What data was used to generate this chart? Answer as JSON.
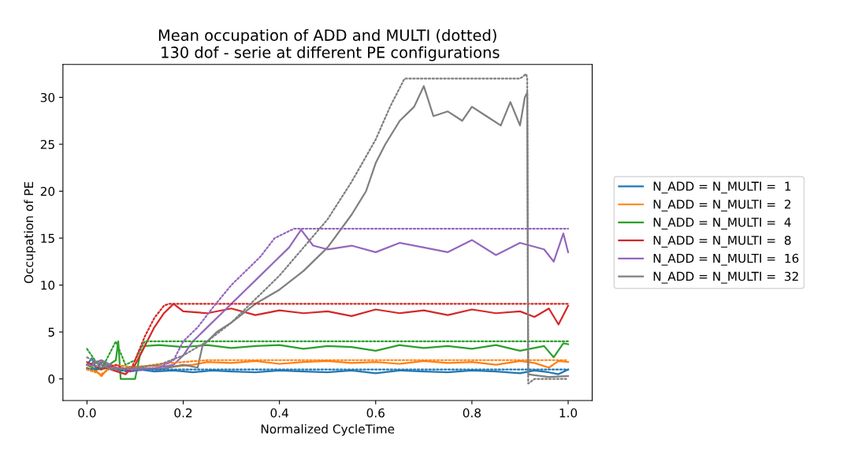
{
  "chart_data": {
    "type": "line",
    "title": "Mean occupation of ADD and MULTI (dotted)\n 130 dof - serie at different PE configurations",
    "xlabel": "Normalized CycleTime",
    "ylabel": "Occupation of PE",
    "xlim": [
      -0.05,
      1.05
    ],
    "ylim": [
      -2.3,
      33.5
    ],
    "xticks": [
      {
        "value": 0,
        "label": "0.0"
      },
      0.2,
      0.4,
      0.6,
      0.8,
      {
        "value": 1,
        "label": "1.0"
      }
    ],
    "yticks": [
      0,
      5,
      10,
      15,
      20,
      25,
      30
    ],
    "grid": false,
    "legend": "right",
    "marker": "none",
    "series": [
      {
        "name": "N_ADD = N_MULTI =  1",
        "color": "#1f77b4",
        "line_style": "solid",
        "x": [
          0,
          0.01,
          0.02,
          0.03,
          0.05,
          0.07,
          0.09,
          0.11,
          0.14,
          0.18,
          0.22,
          0.26,
          0.3,
          0.35,
          0.4,
          0.45,
          0.5,
          0.55,
          0.6,
          0.65,
          0.7,
          0.75,
          0.8,
          0.85,
          0.9,
          0.93,
          0.96,
          0.98,
          1.0
        ],
        "values": [
          1.5,
          2.2,
          1.0,
          1.8,
          1.2,
          0.9,
          1.3,
          1.0,
          0.8,
          0.9,
          0.7,
          0.9,
          0.8,
          0.7,
          0.9,
          0.8,
          0.7,
          0.9,
          0.6,
          0.9,
          0.8,
          0.7,
          0.9,
          0.8,
          0.6,
          0.9,
          0.7,
          0.5,
          1.0
        ]
      },
      {
        "color": "#1f77b4",
        "line_style": "dotted",
        "x": [
          0,
          0.02,
          0.05,
          0.08,
          0.12,
          0.2,
          0.4,
          0.6,
          0.8,
          1.0
        ],
        "values": [
          1.1,
          1.0,
          1.2,
          0.8,
          1.0,
          1.0,
          1.0,
          1.0,
          1.0,
          1.0
        ]
      },
      {
        "name": "N_ADD = N_MULTI =  2",
        "color": "#ff7f0e",
        "line_style": "solid",
        "x": [
          0,
          0.02,
          0.03,
          0.05,
          0.07,
          0.1,
          0.14,
          0.18,
          0.22,
          0.25,
          0.3,
          0.35,
          0.4,
          0.45,
          0.5,
          0.55,
          0.6,
          0.65,
          0.7,
          0.75,
          0.8,
          0.85,
          0.9,
          0.93,
          0.96,
          0.98,
          1.0
        ],
        "values": [
          1.2,
          0.8,
          0.3,
          1.5,
          1.0,
          1.3,
          1.4,
          1.3,
          1.5,
          1.8,
          1.7,
          1.9,
          1.6,
          1.8,
          1.9,
          1.7,
          1.8,
          1.6,
          1.9,
          1.7,
          1.8,
          1.5,
          1.9,
          1.7,
          1.2,
          1.9,
          1.8
        ]
      },
      {
        "color": "#ff7f0e",
        "line_style": "dotted",
        "x": [
          0,
          0.03,
          0.06,
          0.1,
          0.15,
          0.2,
          0.25,
          0.5,
          0.75,
          1.0
        ],
        "values": [
          1.0,
          0.5,
          1.5,
          1.2,
          1.6,
          1.8,
          2.0,
          2.0,
          2.0,
          2.0
        ]
      },
      {
        "name": "N_ADD = N_MULTI =  4",
        "color": "#2ca02c",
        "line_style": "solid",
        "x": [
          0,
          0.02,
          0.04,
          0.06,
          0.065,
          0.07,
          0.1,
          0.11,
          0.12,
          0.15,
          0.2,
          0.25,
          0.3,
          0.35,
          0.4,
          0.45,
          0.5,
          0.55,
          0.6,
          0.65,
          0.7,
          0.75,
          0.8,
          0.85,
          0.9,
          0.95,
          0.97,
          0.99,
          1.0
        ],
        "values": [
          1.5,
          1.0,
          1.3,
          2.0,
          4.0,
          0.0,
          0.0,
          2.5,
          3.5,
          3.6,
          3.4,
          3.6,
          3.3,
          3.5,
          3.6,
          3.2,
          3.5,
          3.4,
          3.0,
          3.6,
          3.3,
          3.5,
          3.2,
          3.6,
          3.0,
          3.5,
          2.3,
          3.8,
          3.7
        ]
      },
      {
        "color": "#2ca02c",
        "line_style": "dotted",
        "x": [
          0,
          0.03,
          0.06,
          0.08,
          0.1,
          0.12,
          0.2,
          0.4,
          0.6,
          0.8,
          1.0
        ],
        "values": [
          3.2,
          1.0,
          4.0,
          1.5,
          2.0,
          4.0,
          4.0,
          4.0,
          4.0,
          4.0,
          4.0
        ]
      },
      {
        "name": "N_ADD = N_MULTI =  8",
        "color": "#d62728",
        "line_style": "solid",
        "x": [
          0,
          0.02,
          0.05,
          0.08,
          0.1,
          0.12,
          0.14,
          0.16,
          0.18,
          0.2,
          0.25,
          0.3,
          0.35,
          0.4,
          0.45,
          0.5,
          0.55,
          0.6,
          0.65,
          0.7,
          0.75,
          0.8,
          0.85,
          0.9,
          0.93,
          0.96,
          0.98,
          1.0
        ],
        "values": [
          1.5,
          1.8,
          1.0,
          0.5,
          1.5,
          3.5,
          5.5,
          7.0,
          8.0,
          7.2,
          7.0,
          7.5,
          6.8,
          7.3,
          7.0,
          7.2,
          6.7,
          7.4,
          7.0,
          7.3,
          6.8,
          7.4,
          7.0,
          7.2,
          6.6,
          7.5,
          5.8,
          7.8
        ]
      },
      {
        "color": "#d62728",
        "line_style": "dotted",
        "x": [
          0,
          0.03,
          0.06,
          0.09,
          0.1,
          0.12,
          0.14,
          0.16,
          0.17,
          0.3,
          0.5,
          0.7,
          0.9,
          1.0
        ],
        "values": [
          1.8,
          1.0,
          1.5,
          0.8,
          2.0,
          4.5,
          6.5,
          7.8,
          8.0,
          8.0,
          8.0,
          8.0,
          8.0,
          8.0
        ]
      },
      {
        "name": "N_ADD = N_MULTI =  16",
        "color": "#9467bd",
        "line_style": "solid",
        "x": [
          0,
          0.03,
          0.06,
          0.09,
          0.12,
          0.15,
          0.18,
          0.2,
          0.22,
          0.25,
          0.28,
          0.3,
          0.33,
          0.36,
          0.39,
          0.42,
          0.445,
          0.47,
          0.5,
          0.55,
          0.6,
          0.65,
          0.7,
          0.75,
          0.8,
          0.85,
          0.9,
          0.95,
          0.97,
          0.99,
          1.0
        ],
        "values": [
          1.5,
          2.0,
          1.2,
          0.8,
          1.0,
          1.2,
          1.5,
          2.5,
          4.0,
          5.5,
          7.0,
          8.0,
          9.5,
          11.0,
          12.5,
          14.0,
          15.9,
          14.2,
          13.8,
          14.2,
          13.5,
          14.5,
          14.0,
          13.5,
          14.8,
          13.2,
          14.5,
          13.8,
          12.5,
          15.5,
          13.5
        ]
      },
      {
        "color": "#9467bd",
        "line_style": "dotted",
        "x": [
          0,
          0.05,
          0.1,
          0.15,
          0.18,
          0.2,
          0.23,
          0.26,
          0.3,
          0.33,
          0.36,
          0.39,
          0.41,
          0.43,
          0.6,
          0.8,
          1.0
        ],
        "values": [
          1.5,
          1.2,
          1.0,
          1.2,
          2.0,
          4.0,
          5.5,
          7.5,
          10.0,
          11.5,
          13.0,
          15.0,
          15.5,
          16.0,
          16.0,
          16.0,
          16.0
        ]
      },
      {
        "name": "N_ADD = N_MULTI =  32",
        "color": "#7f7f7f",
        "line_style": "solid",
        "x": [
          0,
          0.03,
          0.06,
          0.1,
          0.15,
          0.2,
          0.23,
          0.24,
          0.27,
          0.3,
          0.35,
          0.4,
          0.45,
          0.5,
          0.55,
          0.58,
          0.6,
          0.62,
          0.65,
          0.68,
          0.7,
          0.72,
          0.75,
          0.78,
          0.8,
          0.83,
          0.86,
          0.88,
          0.9,
          0.91,
          0.915,
          0.917,
          0.93,
          0.96,
          1.0
        ],
        "values": [
          1.5,
          1.8,
          1.0,
          1.2,
          1.0,
          1.5,
          1.2,
          3.5,
          5.0,
          6.0,
          8.0,
          9.5,
          11.5,
          14.0,
          17.5,
          20.0,
          23.0,
          25.0,
          27.5,
          29.0,
          31.2,
          28.0,
          28.5,
          27.5,
          29.0,
          28.0,
          27.0,
          29.5,
          27.0,
          30.0,
          30.5,
          0.5,
          0.4,
          0.2,
          0.3
        ]
      },
      {
        "color": "#7f7f7f",
        "line_style": "dotted",
        "x": [
          0,
          0.05,
          0.1,
          0.15,
          0.2,
          0.25,
          0.3,
          0.35,
          0.4,
          0.45,
          0.5,
          0.55,
          0.6,
          0.63,
          0.66,
          0.68,
          0.9,
          0.913,
          0.915,
          0.917,
          0.93,
          1.0
        ],
        "values": [
          2.3,
          1.0,
          1.2,
          1.5,
          2.5,
          4.0,
          6.0,
          8.5,
          11.0,
          14.0,
          17.0,
          21.0,
          25.5,
          29.0,
          32.0,
          32.0,
          32.0,
          32.5,
          32.0,
          -0.5,
          0.0,
          0.0
        ]
      }
    ]
  }
}
